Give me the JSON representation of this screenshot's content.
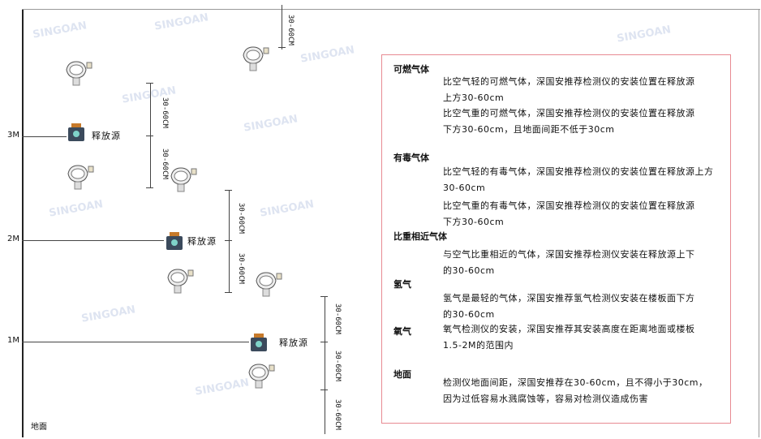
{
  "levels": [
    "3M",
    "2M",
    "1M"
  ],
  "ground_label": "地面",
  "source_label": "释放源",
  "dimension_label": "30-60CM",
  "watermark": "SINGOAN 深国安",
  "colors": {
    "box_border": "#e88a92",
    "source_body": "#3b4a5c",
    "source_cap": "#c77a2a"
  },
  "info": {
    "sections": [
      {
        "title": "可燃气体",
        "paras": [
          "比空气轻的可燃气体，深国安推荐检测仪的安装位置在释放源上方30-60cm",
          "比空气重的可燃气体，深国安推荐检测仪的安装位置在释放源下方30-60cm，且地面间距不低于30cm"
        ]
      },
      {
        "title": "有毒气体",
        "paras": [
          "比空气轻的有毒气体，深国安推荐检测仪的安装位置在释放源上方30-60cm",
          "比空气重的有毒气体，深国安推荐检测仪的安装位置在释放源下方30-60cm"
        ]
      },
      {
        "title": "比重相近气体",
        "paras": [
          "与空气比重相近的气体，深国安推荐检测仪安装在释放源上下的30-60cm"
        ]
      },
      {
        "title": "氢气",
        "paras": [
          "氢气是最轻的气体，深国安推荐氢气检测仪安装在楼板面下方的30-60cm"
        ]
      },
      {
        "title": "氧气",
        "paras": [
          "氧气检测仪的安装，深国安推荐其安装高度在距离地面或楼板1.5-2M的范围内"
        ]
      },
      {
        "title": "地面",
        "paras": [
          "检测仪地面间距，深国安推荐在30-60cm，且不得小于30cm，因为过低容易水溅腐蚀等，容易对检测仪造成伤害"
        ]
      }
    ]
  }
}
